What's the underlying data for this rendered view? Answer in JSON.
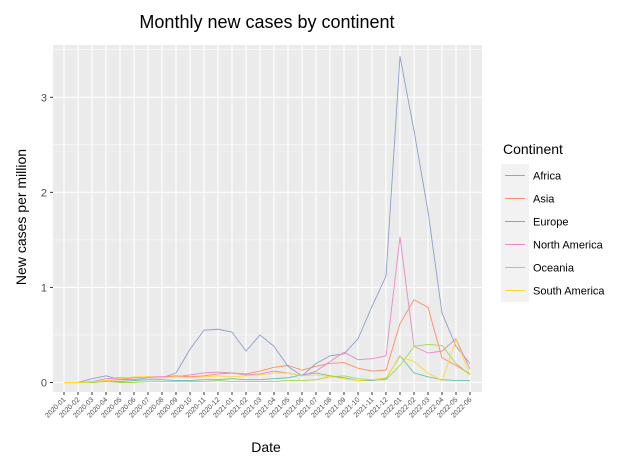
{
  "chart_data": {
    "type": "line",
    "title": "Monthly new cases by continent",
    "xlabel": "Date",
    "ylabel": "New cases per million",
    "ylim": [
      -0.1,
      3.55
    ],
    "yticks": [
      0,
      1,
      2,
      3
    ],
    "grid": true,
    "legend_position": "right",
    "legend_title": "Continent",
    "categories": [
      "2020-01",
      "2020-02",
      "2020-03",
      "2020-04",
      "2020-05",
      "2020-06",
      "2020-07",
      "2020-08",
      "2020-09",
      "2020-10",
      "2020-11",
      "2020-12",
      "2021-01",
      "2021-02",
      "2021-03",
      "2021-04",
      "2021-05",
      "2021-06",
      "2021-07",
      "2021-08",
      "2021-09",
      "2021-10",
      "2021-11",
      "2021-12",
      "2022-01",
      "2022-02",
      "2022-03",
      "2022-04",
      "2022-05",
      "2022-06"
    ],
    "series": [
      {
        "name": "Africa",
        "color": "#66c2a5",
        "values": [
          0.0,
          0.0,
          0.0,
          0.01,
          0.01,
          0.02,
          0.03,
          0.03,
          0.02,
          0.02,
          0.03,
          0.03,
          0.04,
          0.03,
          0.03,
          0.04,
          0.05,
          0.08,
          0.1,
          0.07,
          0.05,
          0.02,
          0.02,
          0.04,
          0.28,
          0.1,
          0.06,
          0.03,
          0.02,
          0.02
        ]
      },
      {
        "name": "Asia",
        "color": "#fc8d62",
        "values": [
          0.0,
          0.0,
          0.01,
          0.02,
          0.03,
          0.05,
          0.06,
          0.06,
          0.07,
          0.06,
          0.07,
          0.09,
          0.1,
          0.09,
          0.12,
          0.16,
          0.18,
          0.13,
          0.17,
          0.2,
          0.21,
          0.15,
          0.12,
          0.13,
          0.62,
          0.87,
          0.79,
          0.26,
          0.18,
          0.09
        ]
      },
      {
        "name": "Europe",
        "color": "#8da0cb",
        "values": [
          0.0,
          0.0,
          0.04,
          0.07,
          0.03,
          0.03,
          0.05,
          0.05,
          0.1,
          0.35,
          0.55,
          0.56,
          0.53,
          0.33,
          0.5,
          0.38,
          0.17,
          0.07,
          0.2,
          0.28,
          0.3,
          0.46,
          0.8,
          1.12,
          3.43,
          2.65,
          1.8,
          0.73,
          0.38,
          0.2
        ]
      },
      {
        "name": "North America",
        "color": "#e78ac3",
        "values": [
          0.0,
          0.0,
          0.01,
          0.04,
          0.05,
          0.05,
          0.06,
          0.06,
          0.06,
          0.08,
          0.1,
          0.11,
          0.1,
          0.08,
          0.09,
          0.12,
          0.1,
          0.07,
          0.12,
          0.22,
          0.32,
          0.24,
          0.25,
          0.28,
          1.53,
          0.38,
          0.31,
          0.33,
          0.46,
          0.14
        ]
      },
      {
        "name": "Oceania",
        "color": "#a6d854",
        "values": [
          0.0,
          0.0,
          0.0,
          0.01,
          0.0,
          0.0,
          0.01,
          0.01,
          0.01,
          0.01,
          0.01,
          0.02,
          0.01,
          0.01,
          0.01,
          0.01,
          0.02,
          0.02,
          0.03,
          0.06,
          0.07,
          0.04,
          0.03,
          0.03,
          0.18,
          0.38,
          0.4,
          0.39,
          0.2,
          0.08
        ]
      },
      {
        "name": "South America",
        "color": "#ffd92f",
        "values": [
          0.0,
          0.0,
          0.01,
          0.02,
          0.04,
          0.06,
          0.06,
          0.05,
          0.06,
          0.05,
          0.06,
          0.07,
          0.06,
          0.07,
          0.08,
          0.1,
          0.1,
          0.07,
          0.08,
          0.06,
          0.04,
          0.02,
          0.03,
          0.05,
          0.27,
          0.22,
          0.1,
          0.02,
          0.45,
          0.08
        ]
      }
    ]
  }
}
